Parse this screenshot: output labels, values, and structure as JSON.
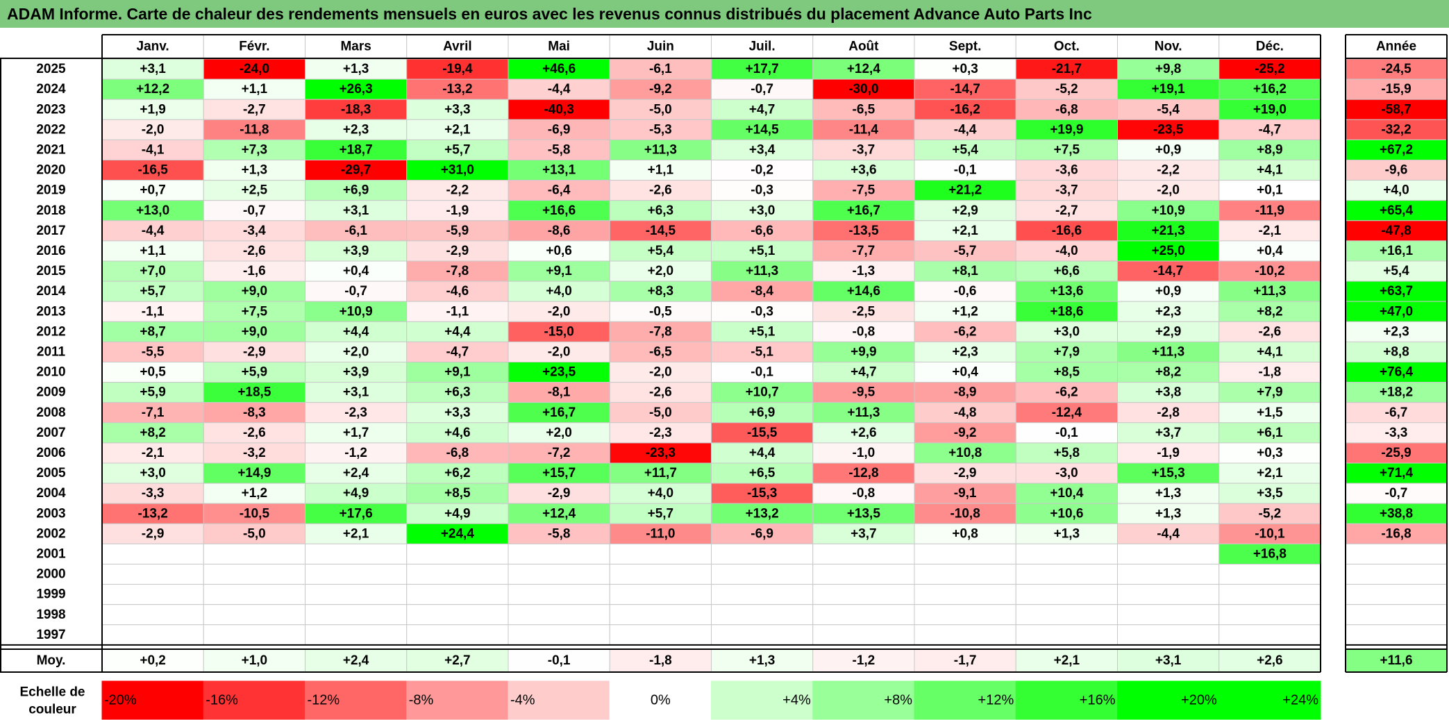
{
  "title": "ADAM Informe. Carte de chaleur des rendements mensuels en euros avec les revenus connus distribués du placement Advance Auto Parts Inc",
  "chart_data": {
    "type": "heatmap",
    "months": [
      "Janv.",
      "Févr.",
      "Mars",
      "Avril",
      "Mai",
      "Juin",
      "Juil.",
      "Août",
      "Sept.",
      "Oct.",
      "Nov.",
      "Déc."
    ],
    "year_header": "Année",
    "years": [
      "2025",
      "2024",
      "2023",
      "2022",
      "2021",
      "2020",
      "2019",
      "2018",
      "2017",
      "2016",
      "2015",
      "2014",
      "2013",
      "2012",
      "2011",
      "2010",
      "2009",
      "2008",
      "2007",
      "2006",
      "2005",
      "2004",
      "2003",
      "2002",
      "2001",
      "2000",
      "1999",
      "1998",
      "1997"
    ],
    "values": [
      [
        3.1,
        -24.0,
        1.3,
        -19.4,
        46.6,
        -6.1,
        17.7,
        12.4,
        0.3,
        -21.7,
        9.8,
        -25.2
      ],
      [
        12.2,
        1.1,
        26.3,
        -13.2,
        -4.4,
        -9.2,
        -0.7,
        -30.0,
        -14.7,
        -5.2,
        19.1,
        16.2
      ],
      [
        1.9,
        -2.7,
        -18.3,
        3.3,
        -40.3,
        -5.0,
        4.7,
        -6.5,
        -16.2,
        -6.8,
        -5.4,
        19.0
      ],
      [
        -2.0,
        -11.8,
        2.3,
        2.1,
        -6.9,
        -5.3,
        14.5,
        -11.4,
        -4.4,
        19.9,
        -23.5,
        -4.7
      ],
      [
        -4.1,
        7.3,
        18.7,
        5.7,
        -5.8,
        11.3,
        3.4,
        -3.7,
        5.4,
        7.5,
        0.9,
        8.9
      ],
      [
        -16.5,
        1.3,
        -29.7,
        31.0,
        13.1,
        1.1,
        -0.2,
        3.6,
        -0.1,
        -3.6,
        -2.2,
        4.1
      ],
      [
        0.7,
        2.5,
        6.9,
        -2.2,
        -6.4,
        -2.6,
        -0.3,
        -7.5,
        21.2,
        -3.7,
        -2.0,
        0.1
      ],
      [
        13.0,
        -0.7,
        3.1,
        -1.9,
        16.6,
        6.3,
        3.0,
        16.7,
        2.9,
        -2.7,
        10.9,
        -11.9
      ],
      [
        -4.4,
        -3.4,
        -6.1,
        -5.9,
        -8.6,
        -14.5,
        -6.6,
        -13.5,
        2.1,
        -16.6,
        21.3,
        -2.1
      ],
      [
        1.1,
        -2.6,
        3.9,
        -2.9,
        0.6,
        5.4,
        5.1,
        -7.7,
        -5.7,
        -4.0,
        25.0,
        0.4
      ],
      [
        7.0,
        -1.6,
        0.4,
        -7.8,
        9.1,
        2.0,
        11.3,
        -1.3,
        8.1,
        6.6,
        -14.7,
        -10.2
      ],
      [
        5.7,
        9.0,
        -0.7,
        -4.6,
        4.0,
        8.3,
        -8.4,
        14.6,
        -0.6,
        13.6,
        0.9,
        11.3
      ],
      [
        -1.1,
        7.5,
        10.9,
        -1.1,
        -2.0,
        -0.5,
        -0.3,
        -2.5,
        1.2,
        18.6,
        2.3,
        8.2
      ],
      [
        8.7,
        9.0,
        4.4,
        4.4,
        -15.0,
        -7.8,
        5.1,
        -0.8,
        -6.2,
        3.0,
        2.9,
        -2.6
      ],
      [
        -5.5,
        -2.9,
        2.0,
        -4.7,
        -2.0,
        -6.5,
        -5.1,
        9.9,
        2.3,
        7.9,
        11.3,
        4.1
      ],
      [
        0.5,
        5.9,
        3.9,
        9.1,
        23.5,
        -2.0,
        -0.1,
        4.7,
        0.4,
        8.5,
        8.2,
        -1.8
      ],
      [
        5.9,
        18.5,
        3.1,
        6.3,
        -8.1,
        -2.6,
        10.7,
        -9.5,
        -8.9,
        -6.2,
        3.8,
        7.9
      ],
      [
        -7.1,
        -8.3,
        -2.3,
        3.3,
        16.7,
        -5.0,
        6.9,
        11.3,
        -4.8,
        -12.4,
        -2.8,
        1.5
      ],
      [
        8.2,
        -2.6,
        1.7,
        4.6,
        2.0,
        -2.3,
        -15.5,
        2.6,
        -9.2,
        -0.1,
        3.7,
        6.1
      ],
      [
        -2.1,
        -3.2,
        -1.2,
        -6.8,
        -7.2,
        -23.3,
        4.4,
        -1.0,
        10.8,
        5.8,
        -1.9,
        0.3
      ],
      [
        3.0,
        14.9,
        2.4,
        6.2,
        15.7,
        11.7,
        6.5,
        -12.8,
        -2.9,
        -3.0,
        15.3,
        2.1
      ],
      [
        -3.3,
        1.2,
        4.9,
        8.5,
        -2.9,
        4.0,
        -15.3,
        -0.8,
        -9.1,
        10.4,
        1.3,
        3.5
      ],
      [
        -13.2,
        -10.5,
        17.6,
        4.9,
        12.4,
        5.7,
        13.2,
        13.5,
        -10.8,
        10.6,
        1.3,
        -5.2
      ],
      [
        -2.9,
        -5.0,
        2.1,
        24.4,
        -5.8,
        -11.0,
        -6.9,
        3.7,
        0.8,
        1.3,
        -4.4,
        -10.1
      ],
      [
        null,
        null,
        null,
        null,
        null,
        null,
        null,
        null,
        null,
        null,
        null,
        16.8
      ],
      [
        null,
        null,
        null,
        null,
        null,
        null,
        null,
        null,
        null,
        null,
        null,
        null
      ],
      [
        null,
        null,
        null,
        null,
        null,
        null,
        null,
        null,
        null,
        null,
        null,
        null
      ],
      [
        null,
        null,
        null,
        null,
        null,
        null,
        null,
        null,
        null,
        null,
        null,
        null
      ],
      [
        null,
        null,
        null,
        null,
        null,
        null,
        null,
        null,
        null,
        null,
        null,
        null
      ]
    ],
    "annual": [
      -24.5,
      -15.9,
      -58.7,
      -32.2,
      67.2,
      -9.6,
      4.0,
      65.4,
      -47.8,
      16.1,
      5.4,
      63.7,
      47.0,
      2.3,
      8.8,
      76.4,
      18.2,
      -6.7,
      -3.3,
      -25.9,
      71.4,
      -0.7,
      38.8,
      -16.8,
      null,
      null,
      null,
      null,
      null
    ],
    "average_label": "Moy.",
    "average_monthly": [
      0.2,
      1.0,
      2.4,
      2.7,
      -0.1,
      -1.8,
      1.3,
      -1.2,
      -1.7,
      2.1,
      3.1,
      2.6
    ],
    "average_annual": 11.6,
    "scale_label": "Echelle de couleur",
    "scale_values": [
      -20,
      -16,
      -12,
      -8,
      -4,
      0,
      4,
      8,
      12,
      16,
      20,
      24
    ],
    "scale_labels": [
      "-20%",
      "-16%",
      "-12%",
      "-8%",
      "-4%",
      "0%",
      "+4%",
      "+8%",
      "+12%",
      "+16%",
      "+20%",
      "+24%"
    ],
    "colors": {
      "negative_max": "#ff0000",
      "positive_max": "#00ff00",
      "neutral": "#ffffff",
      "title_bar": "#7fc97f"
    }
  }
}
